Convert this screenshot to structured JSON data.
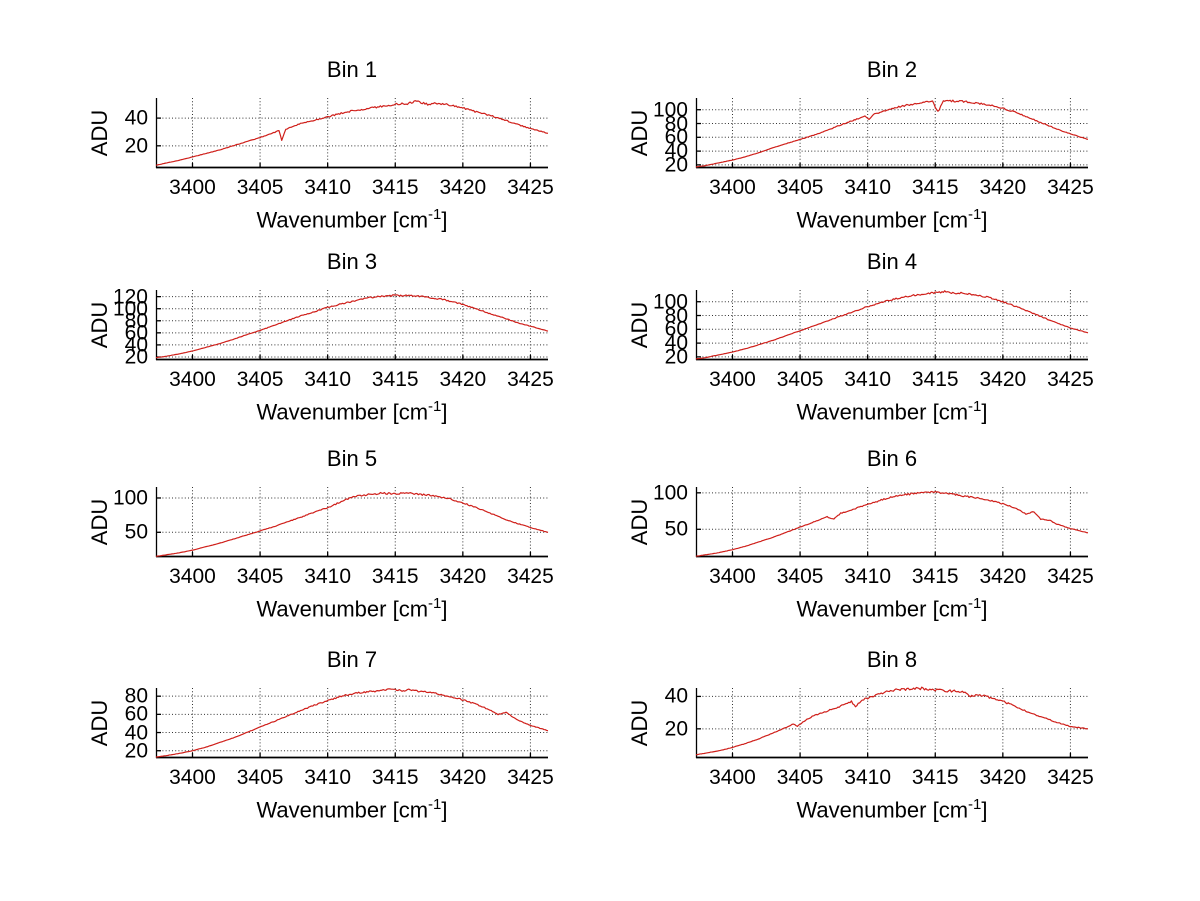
{
  "figure": {
    "background": "#ffffff",
    "line_color": "#cf1f1a",
    "axis_color": "#000000",
    "grid_color": "#333333",
    "text_color": "#000000"
  },
  "labels": {
    "ylabel": "ADU",
    "xlabel_prefix": "Wavenumber [cm",
    "xlabel_exponent": "-1",
    "xlabel_suffix": "]"
  },
  "chart_data": {
    "type": "line",
    "layout": {
      "rows": 4,
      "cols": 2,
      "grid": "dotted",
      "legend": "none"
    },
    "xlabel": "Wavenumber [cm-1]",
    "ylabel": "ADU",
    "xlim": [
      3397.3,
      3426.3
    ],
    "xticks": [
      3400,
      3405,
      3410,
      3415,
      3420,
      3425
    ],
    "charts": [
      {
        "title": "Bin 1",
        "ylim": [
          4,
          54.5
        ],
        "yticks": [
          20,
          40
        ],
        "noise": 0.8,
        "points": [
          [
            3397.3,
            6
          ],
          [
            3398,
            7.5
          ],
          [
            3399,
            9.5
          ],
          [
            3400,
            12
          ],
          [
            3401,
            14.5
          ],
          [
            3402,
            17
          ],
          [
            3403,
            20
          ],
          [
            3404,
            23
          ],
          [
            3405,
            26
          ],
          [
            3406,
            29.5
          ],
          [
            3406.4,
            31
          ],
          [
            3406.6,
            24
          ],
          [
            3406.9,
            32
          ],
          [
            3408,
            36
          ],
          [
            3409,
            38.5
          ],
          [
            3410,
            41
          ],
          [
            3411,
            43.5
          ],
          [
            3412,
            45.5
          ],
          [
            3413,
            47
          ],
          [
            3414,
            48.5
          ],
          [
            3415,
            50
          ],
          [
            3416,
            50.5
          ],
          [
            3416.5,
            52.5
          ],
          [
            3417,
            51
          ],
          [
            3417.5,
            49.5
          ],
          [
            3418,
            51
          ],
          [
            3419,
            49.5
          ],
          [
            3420,
            47.5
          ],
          [
            3421,
            44.5
          ],
          [
            3422,
            42
          ],
          [
            3423,
            39
          ],
          [
            3424,
            35.5
          ],
          [
            3425,
            32.5
          ],
          [
            3426.3,
            29
          ]
        ]
      },
      {
        "title": "Bin 2",
        "ylim": [
          15.5,
          117
        ],
        "yticks": [
          20,
          40,
          60,
          80,
          100
        ],
        "noise": 1.3,
        "points": [
          [
            3397.3,
            17
          ],
          [
            3398,
            19
          ],
          [
            3399,
            23
          ],
          [
            3400,
            27
          ],
          [
            3401,
            32
          ],
          [
            3402,
            38
          ],
          [
            3403,
            45
          ],
          [
            3404,
            51
          ],
          [
            3405,
            57
          ],
          [
            3406,
            63
          ],
          [
            3407,
            70
          ],
          [
            3408,
            78
          ],
          [
            3409,
            85
          ],
          [
            3409.8,
            91
          ],
          [
            3410.1,
            86
          ],
          [
            3410.4,
            93
          ],
          [
            3411,
            97
          ],
          [
            3412,
            103
          ],
          [
            3413,
            107
          ],
          [
            3414,
            110
          ],
          [
            3414.8,
            112
          ],
          [
            3415.2,
            97
          ],
          [
            3415.6,
            112
          ],
          [
            3416,
            113
          ],
          [
            3417,
            112
          ],
          [
            3418,
            110
          ],
          [
            3419,
            107
          ],
          [
            3420,
            102
          ],
          [
            3421,
            96
          ],
          [
            3422,
            88
          ],
          [
            3423,
            80
          ],
          [
            3424,
            72
          ],
          [
            3425,
            65
          ],
          [
            3426.3,
            57
          ]
        ]
      },
      {
        "title": "Bin 3",
        "ylim": [
          15,
          131
        ],
        "yticks": [
          20,
          40,
          60,
          80,
          100,
          120
        ],
        "noise": 1.3,
        "points": [
          [
            3397.3,
            19
          ],
          [
            3398,
            21
          ],
          [
            3399,
            25
          ],
          [
            3400,
            30
          ],
          [
            3401,
            36
          ],
          [
            3402,
            42
          ],
          [
            3403,
            49
          ],
          [
            3404,
            57
          ],
          [
            3405,
            64
          ],
          [
            3406,
            72
          ],
          [
            3407,
            80
          ],
          [
            3408,
            88
          ],
          [
            3409,
            95
          ],
          [
            3410,
            102
          ],
          [
            3411,
            108
          ],
          [
            3412,
            113
          ],
          [
            3413,
            118
          ],
          [
            3414,
            121
          ],
          [
            3415,
            122
          ],
          [
            3416,
            122
          ],
          [
            3417,
            120
          ],
          [
            3418,
            117
          ],
          [
            3419,
            113
          ],
          [
            3420,
            107
          ],
          [
            3421,
            100
          ],
          [
            3422,
            92
          ],
          [
            3423,
            85
          ],
          [
            3424,
            77
          ],
          [
            3425,
            71
          ],
          [
            3426.3,
            63
          ]
        ]
      },
      {
        "title": "Bin 4",
        "ylim": [
          15.5,
          117
        ],
        "yticks": [
          20,
          40,
          60,
          80,
          100
        ],
        "noise": 1.3,
        "points": [
          [
            3397.3,
            17
          ],
          [
            3398,
            19
          ],
          [
            3399,
            23
          ],
          [
            3400,
            27
          ],
          [
            3401,
            32
          ],
          [
            3402,
            38
          ],
          [
            3403,
            44
          ],
          [
            3404,
            51
          ],
          [
            3405,
            58
          ],
          [
            3406,
            65
          ],
          [
            3407,
            72
          ],
          [
            3408,
            79
          ],
          [
            3409,
            86
          ],
          [
            3410,
            93
          ],
          [
            3411,
            99
          ],
          [
            3412,
            104
          ],
          [
            3413,
            108
          ],
          [
            3414,
            111
          ],
          [
            3415,
            113
          ],
          [
            3415.8,
            115
          ],
          [
            3416.5,
            112
          ],
          [
            3417,
            113
          ],
          [
            3418,
            110
          ],
          [
            3419,
            106
          ],
          [
            3420,
            100
          ],
          [
            3421,
            93
          ],
          [
            3422,
            85
          ],
          [
            3423,
            77
          ],
          [
            3424,
            69
          ],
          [
            3425,
            62
          ],
          [
            3426.3,
            55
          ]
        ]
      },
      {
        "title": "Bin 5",
        "ylim": [
          14,
          116
        ],
        "yticks": [
          50,
          100
        ],
        "noise": 1.3,
        "points": [
          [
            3397.3,
            15
          ],
          [
            3398,
            17
          ],
          [
            3399,
            20
          ],
          [
            3400,
            24
          ],
          [
            3401,
            29
          ],
          [
            3402,
            34
          ],
          [
            3403,
            40
          ],
          [
            3404,
            46
          ],
          [
            3405,
            52
          ],
          [
            3406,
            58
          ],
          [
            3407,
            65
          ],
          [
            3408,
            72
          ],
          [
            3409,
            79
          ],
          [
            3410,
            86
          ],
          [
            3410.8,
            93
          ],
          [
            3411.5,
            99
          ],
          [
            3412,
            102
          ],
          [
            3413,
            105
          ],
          [
            3414,
            107
          ],
          [
            3415,
            106
          ],
          [
            3416,
            107
          ],
          [
            3417,
            105
          ],
          [
            3418,
            103
          ],
          [
            3419,
            99
          ],
          [
            3420,
            93
          ],
          [
            3421,
            86
          ],
          [
            3422,
            78
          ],
          [
            3423,
            70
          ],
          [
            3424,
            63
          ],
          [
            3425,
            57
          ],
          [
            3426.3,
            50
          ]
        ]
      },
      {
        "title": "Bin 6",
        "ylim": [
          12,
          108
        ],
        "yticks": [
          50,
          100
        ],
        "noise": 1.3,
        "points": [
          [
            3397.3,
            13
          ],
          [
            3398,
            15
          ],
          [
            3399,
            18
          ],
          [
            3400,
            22
          ],
          [
            3401,
            27
          ],
          [
            3402,
            33
          ],
          [
            3403,
            39
          ],
          [
            3404,
            46
          ],
          [
            3405,
            53
          ],
          [
            3406,
            60
          ],
          [
            3407,
            67
          ],
          [
            3407.5,
            64
          ],
          [
            3408,
            72
          ],
          [
            3409,
            78
          ],
          [
            3410,
            84
          ],
          [
            3411,
            90
          ],
          [
            3412,
            95
          ],
          [
            3413,
            98
          ],
          [
            3414,
            100
          ],
          [
            3415,
            101
          ],
          [
            3416,
            99
          ],
          [
            3417,
            96
          ],
          [
            3418,
            93
          ],
          [
            3419,
            90
          ],
          [
            3420,
            85
          ],
          [
            3421,
            79
          ],
          [
            3421.7,
            71
          ],
          [
            3422.3,
            74
          ],
          [
            3422.8,
            64
          ],
          [
            3423.5,
            62
          ],
          [
            3424,
            57
          ],
          [
            3425,
            51
          ],
          [
            3426.3,
            45
          ]
        ]
      },
      {
        "title": "Bin 7",
        "ylim": [
          12,
          89
        ],
        "yticks": [
          20,
          40,
          60,
          80
        ],
        "noise": 1.0,
        "points": [
          [
            3397.3,
            13
          ],
          [
            3398,
            14.5
          ],
          [
            3399,
            17
          ],
          [
            3400,
            20
          ],
          [
            3401,
            24
          ],
          [
            3402,
            29
          ],
          [
            3403,
            34
          ],
          [
            3404,
            40
          ],
          [
            3405,
            46
          ],
          [
            3406,
            52
          ],
          [
            3407,
            58
          ],
          [
            3408,
            64
          ],
          [
            3409,
            70
          ],
          [
            3410,
            75
          ],
          [
            3411,
            80
          ],
          [
            3412,
            83
          ],
          [
            3413,
            85
          ],
          [
            3414,
            86
          ],
          [
            3414.7,
            88
          ],
          [
            3415.5,
            86
          ],
          [
            3416,
            87
          ],
          [
            3417,
            85
          ],
          [
            3418,
            83
          ],
          [
            3419,
            80
          ],
          [
            3420,
            76
          ],
          [
            3421,
            71
          ],
          [
            3422,
            65
          ],
          [
            3422.6,
            60
          ],
          [
            3423.2,
            62
          ],
          [
            3424,
            54
          ],
          [
            3425,
            48
          ],
          [
            3426.3,
            42
          ]
        ]
      },
      {
        "title": "Bin 8",
        "ylim": [
          2,
          45.2
        ],
        "yticks": [
          20,
          40
        ],
        "noise": 0.8,
        "points": [
          [
            3397.3,
            4
          ],
          [
            3398,
            5
          ],
          [
            3399,
            6.5
          ],
          [
            3400,
            8.5
          ],
          [
            3401,
            11
          ],
          [
            3402,
            14
          ],
          [
            3403,
            17.5
          ],
          [
            3404,
            21
          ],
          [
            3404.5,
            23
          ],
          [
            3404.8,
            21.5
          ],
          [
            3405.5,
            26
          ],
          [
            3406,
            28
          ],
          [
            3407,
            31
          ],
          [
            3408,
            34
          ],
          [
            3408.8,
            37
          ],
          [
            3409.1,
            33.5
          ],
          [
            3409.5,
            37.5
          ],
          [
            3410,
            39
          ],
          [
            3411,
            42
          ],
          [
            3412,
            44
          ],
          [
            3413,
            44.5
          ],
          [
            3414,
            45
          ],
          [
            3415,
            44
          ],
          [
            3416,
            43.5
          ],
          [
            3417,
            43
          ],
          [
            3417.6,
            40
          ],
          [
            3418.3,
            41
          ],
          [
            3419,
            39.5
          ],
          [
            3420,
            37
          ],
          [
            3421,
            33.5
          ],
          [
            3422,
            30
          ],
          [
            3423,
            27
          ],
          [
            3424,
            24
          ],
          [
            3425,
            21.5
          ],
          [
            3426.3,
            20
          ]
        ]
      }
    ]
  }
}
